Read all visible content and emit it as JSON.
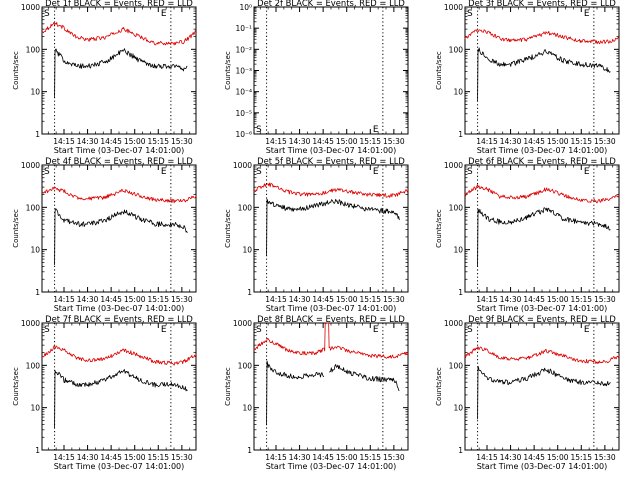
{
  "figure": {
    "panel_title_suffix": " BLACK = Events, RED = LLD",
    "xlabel": "Start Time (03-Dec-07 14:01:00)",
    "ylabel": "Counts/sec",
    "x_tick_labels": [
      "14:15",
      "14:30",
      "14:45",
      "15:00",
      "15:15",
      "15:30"
    ],
    "y_tick_labels_standard": [
      "1",
      "10",
      "100",
      "1000"
    ],
    "y_tick_labels_det2": [
      "10⁰",
      "10⁻¹",
      "10⁻²",
      "10⁻³",
      "10⁻⁴",
      "10⁻⁵",
      "10⁻⁶"
    ],
    "start_marker": "S",
    "end_marker": "E",
    "colors": {
      "events": "#000000",
      "lld": "#dd0000",
      "frame": "#000000"
    }
  },
  "chart_data": [
    {
      "type": "line",
      "title": "Det 1f BLACK = Events, RED = LLD",
      "detector": "1f",
      "yscale": "log",
      "ylim": [
        1,
        1000
      ],
      "xlim": [
        "14:01",
        "15:39"
      ],
      "marker_times": [
        "14:09",
        "15:23"
      ],
      "series": [
        {
          "name": "LLD",
          "color": "#dd0000",
          "x_minutes": [
            0,
            8,
            14,
            22,
            30,
            40,
            52,
            62,
            72,
            85,
            90,
            93,
            98
          ],
          "values": [
            250,
            420,
            320,
            190,
            170,
            190,
            300,
            200,
            140,
            140,
            150,
            180,
            260
          ]
        },
        {
          "name": "Events",
          "color": "#000000",
          "x_minutes": [
            8,
            8.3,
            9,
            14,
            22,
            30,
            40,
            52,
            62,
            72,
            85,
            90,
            92.5
          ],
          "values": [
            7,
            95,
            90,
            55,
            40,
            40,
            50,
            95,
            55,
            40,
            40,
            35,
            40
          ]
        }
      ]
    },
    {
      "type": "line",
      "title": "Det 2f BLACK = Events, RED = LLD",
      "detector": "2f",
      "yscale": "log",
      "ylim": [
        1e-06,
        1
      ],
      "xlim": [
        "14:01",
        "15:39"
      ],
      "marker_times": [
        "14:09",
        "15:23"
      ],
      "series": []
    },
    {
      "type": "line",
      "title": "Det 3f BLACK = Events, RED = LLD",
      "detector": "3f",
      "yscale": "log",
      "ylim": [
        1,
        1000
      ],
      "xlim": [
        "14:01",
        "15:39"
      ],
      "marker_times": [
        "14:09",
        "15:23"
      ],
      "series": [
        {
          "name": "LLD",
          "color": "#dd0000",
          "x_minutes": [
            0,
            8,
            14,
            22,
            30,
            40,
            52,
            62,
            72,
            85,
            90,
            98
          ],
          "values": [
            180,
            290,
            260,
            180,
            160,
            170,
            250,
            200,
            160,
            150,
            150,
            180
          ]
        },
        {
          "name": "Events",
          "color": "#000000",
          "x_minutes": [
            8,
            8.3,
            9,
            14,
            22,
            30,
            40,
            52,
            62,
            72,
            85,
            90,
            92.5
          ],
          "values": [
            6,
            100,
            95,
            60,
            45,
            45,
            60,
            90,
            55,
            45,
            40,
            35,
            30
          ]
        }
      ]
    },
    {
      "type": "line",
      "title": "Det 4f BLACK = Events, RED = LLD",
      "detector": "4f",
      "yscale": "log",
      "ylim": [
        1,
        1000
      ],
      "xlim": [
        "14:01",
        "15:39"
      ],
      "marker_times": [
        "14:09",
        "15:23"
      ],
      "series": [
        {
          "name": "LLD",
          "color": "#dd0000",
          "x_minutes": [
            0,
            8,
            14,
            22,
            30,
            40,
            52,
            62,
            72,
            85,
            90,
            98
          ],
          "values": [
            220,
            280,
            240,
            170,
            160,
            170,
            250,
            190,
            150,
            140,
            140,
            190
          ]
        },
        {
          "name": "Events",
          "color": "#000000",
          "x_minutes": [
            8,
            8.3,
            9,
            14,
            22,
            30,
            40,
            52,
            62,
            72,
            85,
            90,
            92.5
          ],
          "values": [
            4,
            85,
            80,
            50,
            40,
            40,
            50,
            80,
            55,
            40,
            40,
            35,
            25
          ]
        }
      ]
    },
    {
      "type": "line",
      "title": "Det 5f BLACK = Events, RED = LLD",
      "detector": "5f",
      "yscale": "log",
      "ylim": [
        1,
        1000
      ],
      "xlim": [
        "14:01",
        "15:39"
      ],
      "marker_times": [
        "14:09",
        "15:23"
      ],
      "series": [
        {
          "name": "LLD",
          "color": "#dd0000",
          "x_minutes": [
            0,
            8,
            14,
            22,
            30,
            40,
            52,
            62,
            72,
            85,
            90,
            98
          ],
          "values": [
            250,
            350,
            320,
            230,
            200,
            200,
            260,
            230,
            200,
            190,
            190,
            260
          ]
        },
        {
          "name": "Events",
          "color": "#000000",
          "x_minutes": [
            8,
            8.3,
            9,
            14,
            22,
            30,
            40,
            52,
            62,
            72,
            85,
            90,
            92.5
          ],
          "values": [
            8,
            140,
            140,
            110,
            90,
            90,
            110,
            140,
            110,
            90,
            80,
            80,
            50
          ]
        }
      ]
    },
    {
      "type": "line",
      "title": "Det 6f BLACK = Events, RED = LLD",
      "detector": "6f",
      "yscale": "log",
      "ylim": [
        1,
        1000
      ],
      "xlim": [
        "14:01",
        "15:39"
      ],
      "marker_times": [
        "14:09",
        "15:23"
      ],
      "series": [
        {
          "name": "LLD",
          "color": "#dd0000",
          "x_minutes": [
            0,
            8,
            14,
            22,
            30,
            40,
            52,
            62,
            72,
            85,
            90,
            98
          ],
          "values": [
            200,
            310,
            270,
            180,
            170,
            180,
            270,
            200,
            150,
            140,
            150,
            200
          ]
        },
        {
          "name": "Events",
          "color": "#000000",
          "x_minutes": [
            8,
            8.3,
            9,
            14,
            22,
            30,
            40,
            52,
            62,
            72,
            85,
            90,
            92.5
          ],
          "values": [
            4,
            90,
            85,
            55,
            45,
            45,
            60,
            90,
            55,
            45,
            40,
            35,
            30
          ]
        }
      ]
    },
    {
      "type": "line",
      "title": "Det 7f BLACK = Events, RED = LLD",
      "detector": "7f",
      "yscale": "log",
      "ylim": [
        1,
        1000
      ],
      "xlim": [
        "14:01",
        "15:39"
      ],
      "marker_times": [
        "14:09",
        "15:23"
      ],
      "series": [
        {
          "name": "LLD",
          "color": "#dd0000",
          "x_minutes": [
            0,
            8,
            14,
            22,
            30,
            40,
            52,
            62,
            72,
            85,
            90,
            98
          ],
          "values": [
            150,
            270,
            230,
            150,
            130,
            140,
            230,
            170,
            120,
            110,
            120,
            180
          ]
        },
        {
          "name": "Events",
          "color": "#000000",
          "x_minutes": [
            8,
            8.3,
            9,
            14,
            22,
            30,
            40,
            52,
            62,
            72,
            85,
            90,
            92.5
          ],
          "values": [
            3,
            80,
            75,
            45,
            35,
            35,
            45,
            75,
            45,
            35,
            35,
            30,
            25
          ]
        }
      ]
    },
    {
      "type": "line",
      "title": "Det 8f BLACK = Events, RED = LLD",
      "detector": "8f",
      "yscale": "log",
      "ylim": [
        1,
        1000
      ],
      "xlim": [
        "14:01",
        "15:39"
      ],
      "marker_times": [
        "14:09",
        "15:23"
      ],
      "series": [
        {
          "name": "LLD",
          "color": "#dd0000",
          "x_minutes": [
            0,
            8,
            14,
            22,
            30,
            40,
            45,
            45.3,
            47.5,
            47.8,
            52,
            62,
            72,
            85,
            90,
            98
          ],
          "values": [
            240,
            400,
            330,
            220,
            190,
            200,
            240,
            1000,
            1000,
            240,
            280,
            210,
            170,
            160,
            160,
            200
          ]
        },
        {
          "name": "Events",
          "color": "#000000",
          "x_minutes": [
            8,
            8.3,
            9,
            14,
            22,
            30,
            40,
            45,
            45.3,
            47.5,
            47.8,
            52,
            62,
            72,
            85,
            90,
            92.5
          ],
          "values": [
            4,
            110,
            100,
            70,
            55,
            55,
            60,
            60,
            null,
            null,
            70,
            95,
            65,
            50,
            45,
            45,
            25
          ]
        }
      ]
    },
    {
      "type": "line",
      "title": "Det 9f BLACK = Events, RED = LLD",
      "detector": "9f",
      "yscale": "log",
      "ylim": [
        1,
        1000
      ],
      "xlim": [
        "14:01",
        "15:39"
      ],
      "marker_times": [
        "14:09",
        "15:23"
      ],
      "series": [
        {
          "name": "LLD",
          "color": "#dd0000",
          "x_minutes": [
            0,
            8,
            14,
            22,
            30,
            40,
            52,
            62,
            72,
            85,
            90,
            98
          ],
          "values": [
            160,
            260,
            230,
            150,
            140,
            150,
            220,
            170,
            130,
            120,
            120,
            170
          ]
        },
        {
          "name": "Events",
          "color": "#000000",
          "x_minutes": [
            8,
            8.3,
            9,
            14,
            22,
            30,
            40,
            52,
            62,
            72,
            85,
            90,
            92.5
          ],
          "values": [
            5,
            90,
            85,
            50,
            40,
            40,
            50,
            80,
            50,
            40,
            38,
            35,
            40
          ]
        }
      ]
    }
  ]
}
